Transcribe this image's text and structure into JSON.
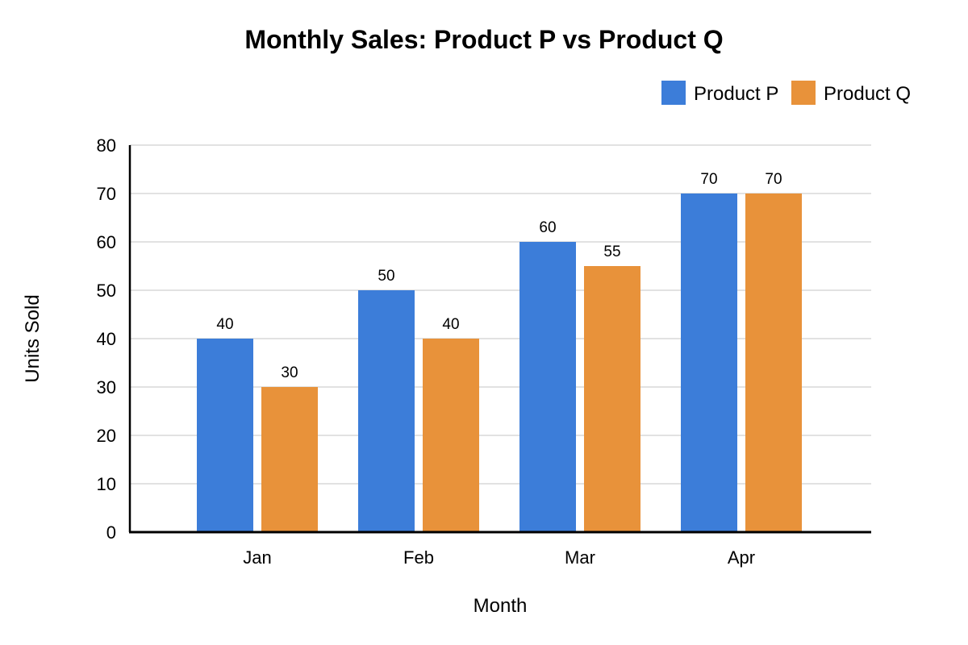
{
  "chart_data": {
    "type": "bar",
    "title": "Monthly Sales: Product P vs Product Q",
    "xlabel": "Month",
    "ylabel": "Units Sold",
    "categories": [
      "Jan",
      "Feb",
      "Mar",
      "Apr"
    ],
    "series": [
      {
        "name": "Product P",
        "color": "#3c7dd9",
        "values": [
          40,
          50,
          60,
          70
        ]
      },
      {
        "name": "Product Q",
        "color": "#e8923a",
        "values": [
          30,
          40,
          55,
          70
        ]
      }
    ],
    "ylim": [
      0,
      80
    ],
    "yticks": [
      0,
      10,
      20,
      30,
      40,
      50,
      60,
      70,
      80
    ],
    "grid": true,
    "legend_position": "top-right",
    "data_labels": true
  }
}
